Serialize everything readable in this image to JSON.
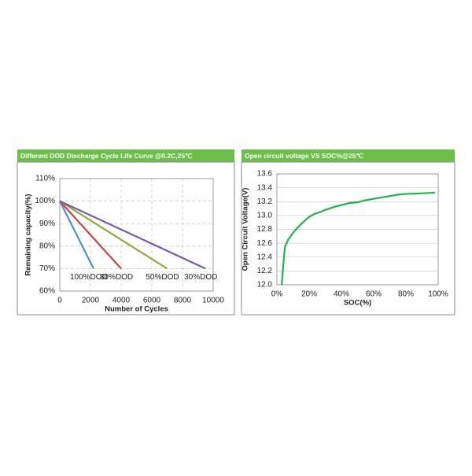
{
  "chart_data": [
    {
      "type": "line",
      "title": "Different DOD Discharge Cycle Life Curve @0.2C,25℃",
      "xlabel": "Number of Cycles",
      "ylabel": "Remaining capacity(%)",
      "xlim": [
        0,
        10000
      ],
      "xticks": [
        0,
        2000,
        4000,
        6000,
        8000,
        10000
      ],
      "ylim": [
        60,
        110
      ],
      "yticks": [
        {
          "value": 60,
          "label": "60%"
        },
        {
          "value": 70,
          "label": "70%"
        },
        {
          "value": 80,
          "label": "80%"
        },
        {
          "value": 90,
          "label": "90%"
        },
        {
          "value": 100,
          "label": "100%"
        },
        {
          "value": 110,
          "label": "110%"
        }
      ],
      "grid": true,
      "series": [
        {
          "name": "100%DOD",
          "color": "#4f8fd6",
          "x": [
            0,
            2200
          ],
          "values": [
            100,
            70
          ]
        },
        {
          "name": "80%DOD",
          "color": "#c9453f",
          "x": [
            0,
            4000
          ],
          "values": [
            100,
            70
          ]
        },
        {
          "name": "50%DOD",
          "color": "#8aae3f",
          "x": [
            0,
            7000
          ],
          "values": [
            100,
            70
          ]
        },
        {
          "name": "30%DOD",
          "color": "#7b5aa6",
          "x": [
            0,
            9500
          ],
          "values": [
            100,
            70
          ]
        }
      ]
    },
    {
      "type": "line",
      "title": "Open circuit voltage VS SOC%@25℃",
      "xlabel": "SOC(%)",
      "ylabel": "Open Circuit Voltage(V)",
      "xlim": [
        0,
        100
      ],
      "xticks": [
        {
          "value": 0,
          "label": "0%"
        },
        {
          "value": 20,
          "label": "20%"
        },
        {
          "value": 40,
          "label": "40%"
        },
        {
          "value": 60,
          "label": "60%"
        },
        {
          "value": 80,
          "label": "80%"
        },
        {
          "value": 100,
          "label": "100%"
        }
      ],
      "ylim": [
        12.0,
        13.6
      ],
      "yticks": [
        {
          "value": 12.0,
          "label": "12.0"
        },
        {
          "value": 12.2,
          "label": "12.2"
        },
        {
          "value": 12.4,
          "label": "12.4"
        },
        {
          "value": 12.6,
          "label": "12.6"
        },
        {
          "value": 12.8,
          "label": "12.8"
        },
        {
          "value": 13.0,
          "label": "13.0"
        },
        {
          "value": 13.2,
          "label": "13.2"
        },
        {
          "value": 13.4,
          "label": "13.4"
        },
        {
          "value": 13.6,
          "label": "13.6"
        }
      ],
      "grid": true,
      "series": [
        {
          "color": "#22b24c",
          "x": [
            3,
            4,
            5,
            7,
            10,
            13,
            17,
            20,
            23,
            27,
            30,
            35,
            40,
            45,
            50,
            55,
            60,
            65,
            70,
            75,
            80,
            90,
            98
          ],
          "values": [
            12.0,
            12.3,
            12.55,
            12.65,
            12.75,
            12.83,
            12.92,
            12.98,
            13.02,
            13.05,
            13.08,
            13.12,
            13.15,
            13.18,
            13.19,
            13.22,
            13.24,
            13.26,
            13.28,
            13.3,
            13.31,
            13.32,
            13.33
          ]
        }
      ]
    }
  ]
}
